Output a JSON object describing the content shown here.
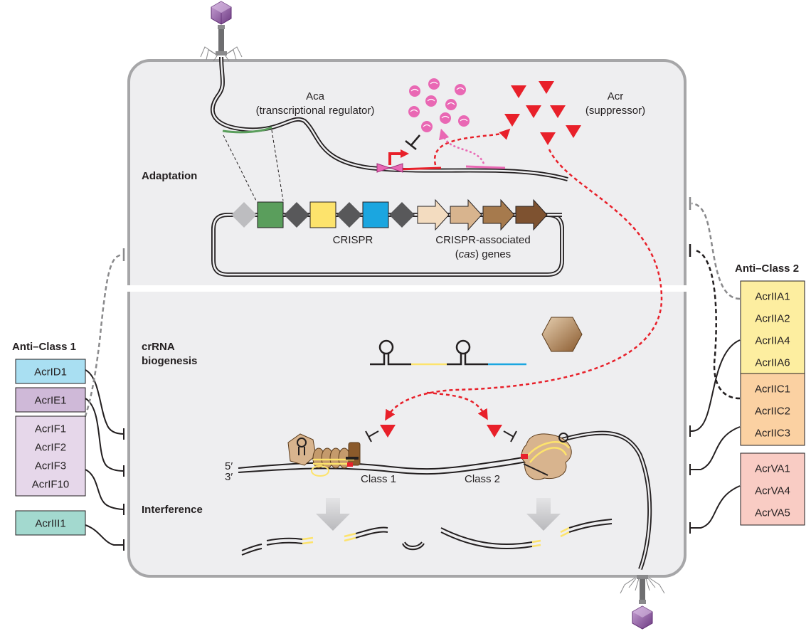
{
  "sections": {
    "adaptation": "Adaptation",
    "crrna_line1": "crRNA",
    "crrna_line2": "biogenesis",
    "interference": "Interference"
  },
  "labels": {
    "aca": "Aca",
    "aca_sub": "(transcriptional regulator)",
    "acr": "Acr",
    "acr_sub": "(suppressor)",
    "crispr": "CRISPR",
    "cas_line1": "CRISPR-associated",
    "cas_line2_a": "(",
    "cas_line2_italic": "cas",
    "cas_line2_b": ") genes",
    "class1": "Class 1",
    "class2": "Class 2",
    "five_prime": "5′",
    "three_prime": "3′"
  },
  "anti_class1": {
    "title": "Anti–Class 1",
    "groups": [
      {
        "items": [
          "AcrID1"
        ],
        "color": "#a9dff2"
      },
      {
        "items": [
          "AcrIE1"
        ],
        "color": "#cfb9d8"
      },
      {
        "items": [
          "AcrIF1",
          "AcrIF2",
          "AcrIF3",
          "AcrIF10"
        ],
        "color": "#e6d7ea"
      },
      {
        "items": [
          "AcrIII1"
        ],
        "color": "#a3d9cf"
      }
    ]
  },
  "anti_class2": {
    "title": "Anti–Class 2",
    "groups": [
      {
        "items": [
          "AcrIIA1",
          "AcrIIA2",
          "AcrIIA4",
          "AcrIIA6"
        ],
        "color": "#fdeea0"
      },
      {
        "items": [
          "AcrIIC1",
          "AcrIIC2",
          "AcrIIC3"
        ],
        "color": "#fbd1a2"
      },
      {
        "items": [
          "AcrVA1",
          "AcrVA4",
          "AcrVA5"
        ],
        "color": "#f9ccc4"
      }
    ]
  },
  "colors": {
    "cell_fill": "#eeeef0",
    "cell_border": "#a6a6a8",
    "acr_red": "#e8202a",
    "aca_pink": "#e968b4",
    "spacer_green": "#5a9e5c",
    "spacer_yellow": "#fde36c",
    "spacer_blue": "#1ba6e0",
    "repeat_gray": "#58585a",
    "phage_purple": "#8a4f9e"
  }
}
